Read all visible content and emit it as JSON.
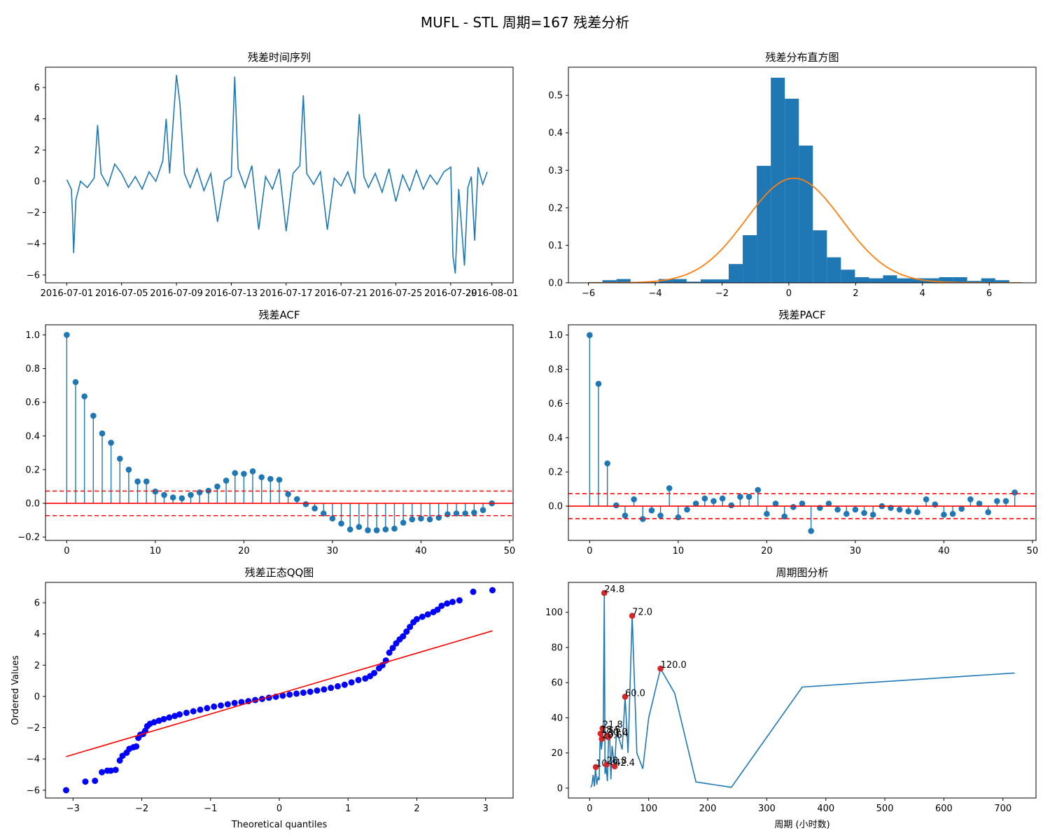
{
  "figure": {
    "title": "MUFL - STL 周期=167 残差分析"
  },
  "colors": {
    "series": "#1f77b4",
    "secondary": "#ff7f0e",
    "reference": "#ff0000",
    "peak": "#d62728",
    "qq_points": "#0000ff"
  },
  "chart_data": [
    {
      "id": "residual_series",
      "type": "line",
      "title": "残差时间序列",
      "xlabel": "",
      "ylabel": "",
      "x_tick_labels": [
        "2016-07-01",
        "2016-07-05",
        "2016-07-09",
        "2016-07-13",
        "2016-07-17",
        "2016-07-21",
        "2016-07-25",
        "2016-07-29",
        "2016-08-01"
      ],
      "x_range": [
        "2016-07-01",
        "2016-08-01"
      ],
      "ylim": [
        -6.5,
        7.3
      ],
      "y_ticks": [
        -6,
        -4,
        -2,
        0,
        2,
        4,
        6
      ],
      "points": [
        [
          "2016-07-01T00:00",
          0.1
        ],
        [
          "2016-07-01T08:00",
          -0.5
        ],
        [
          "2016-07-01T10:00",
          -2.0
        ],
        [
          "2016-07-01T12:00",
          -4.6
        ],
        [
          "2016-07-01T16:00",
          -1.2
        ],
        [
          "2016-07-02T00:00",
          0.0
        ],
        [
          "2016-07-02T12:00",
          -0.4
        ],
        [
          "2016-07-03T00:00",
          0.2
        ],
        [
          "2016-07-03T06:00",
          3.6
        ],
        [
          "2016-07-03T12:00",
          0.5
        ],
        [
          "2016-07-04T00:00",
          -0.3
        ],
        [
          "2016-07-04T12:00",
          1.1
        ],
        [
          "2016-07-05T00:00",
          0.5
        ],
        [
          "2016-07-05T12:00",
          -0.4
        ],
        [
          "2016-07-06T00:00",
          0.3
        ],
        [
          "2016-07-06T12:00",
          -0.5
        ],
        [
          "2016-07-07T00:00",
          0.6
        ],
        [
          "2016-07-07T12:00",
          0.0
        ],
        [
          "2016-07-08T00:00",
          1.3
        ],
        [
          "2016-07-08T06:00",
          4.0
        ],
        [
          "2016-07-08T12:00",
          0.5
        ],
        [
          "2016-07-08T20:00",
          4.7
        ],
        [
          "2016-07-09T00:00",
          6.8
        ],
        [
          "2016-07-09T06:00",
          5.0
        ],
        [
          "2016-07-09T14:00",
          0.5
        ],
        [
          "2016-07-10T00:00",
          -0.4
        ],
        [
          "2016-07-10T12:00",
          0.8
        ],
        [
          "2016-07-11T00:00",
          -0.6
        ],
        [
          "2016-07-11T12:00",
          0.5
        ],
        [
          "2016-07-12T00:00",
          -2.6
        ],
        [
          "2016-07-12T12:00",
          0.0
        ],
        [
          "2016-07-13T00:00",
          0.3
        ],
        [
          "2016-07-13T06:00",
          6.7
        ],
        [
          "2016-07-13T12:00",
          0.8
        ],
        [
          "2016-07-14T00:00",
          -0.4
        ],
        [
          "2016-07-14T12:00",
          1.0
        ],
        [
          "2016-07-15T00:00",
          -3.1
        ],
        [
          "2016-07-15T12:00",
          0.3
        ],
        [
          "2016-07-16T00:00",
          -0.5
        ],
        [
          "2016-07-16T12:00",
          0.8
        ],
        [
          "2016-07-17T00:00",
          -3.2
        ],
        [
          "2016-07-17T12:00",
          0.5
        ],
        [
          "2016-07-18T00:00",
          1.0
        ],
        [
          "2016-07-18T06:00",
          5.5
        ],
        [
          "2016-07-18T12:00",
          0.5
        ],
        [
          "2016-07-19T00:00",
          -0.2
        ],
        [
          "2016-07-19T12:00",
          0.6
        ],
        [
          "2016-07-20T00:00",
          -3.1
        ],
        [
          "2016-07-20T12:00",
          0.2
        ],
        [
          "2016-07-21T00:00",
          -0.3
        ],
        [
          "2016-07-21T12:00",
          0.6
        ],
        [
          "2016-07-22T00:00",
          -0.8
        ],
        [
          "2016-07-22T08:00",
          4.3
        ],
        [
          "2016-07-22T16:00",
          0.3
        ],
        [
          "2016-07-23T00:00",
          -0.4
        ],
        [
          "2016-07-23T12:00",
          0.5
        ],
        [
          "2016-07-24T00:00",
          -0.7
        ],
        [
          "2016-07-24T12:00",
          0.8
        ],
        [
          "2016-07-25T00:00",
          -1.3
        ],
        [
          "2016-07-25T12:00",
          0.4
        ],
        [
          "2016-07-26T00:00",
          -0.6
        ],
        [
          "2016-07-26T12:00",
          0.7
        ],
        [
          "2016-07-27T00:00",
          -0.5
        ],
        [
          "2016-07-27T12:00",
          0.4
        ],
        [
          "2016-07-28T00:00",
          -0.2
        ],
        [
          "2016-07-28T12:00",
          0.6
        ],
        [
          "2016-07-29T00:00",
          0.9
        ],
        [
          "2016-07-29T04:00",
          -4.8
        ],
        [
          "2016-07-29T08:00",
          -5.9
        ],
        [
          "2016-07-29T14:00",
          -0.5
        ],
        [
          "2016-07-30T00:00",
          -5.4
        ],
        [
          "2016-07-30T06:00",
          -0.4
        ],
        [
          "2016-07-30T12:00",
          0.3
        ],
        [
          "2016-07-30T18:00",
          -3.8
        ],
        [
          "2016-07-31T00:00",
          0.9
        ],
        [
          "2016-07-31T08:00",
          -0.2
        ],
        [
          "2016-07-31T16:00",
          0.6
        ]
      ]
    },
    {
      "id": "residual_histogram",
      "type": "bar",
      "title": "残差分布直方图",
      "xlabel": "",
      "ylabel": "",
      "xlim": [
        -6.6,
        7.4
      ],
      "ylim": [
        0,
        0.575
      ],
      "x_ticks": [
        -6,
        -4,
        -2,
        0,
        2,
        4,
        6
      ],
      "y_ticks": [
        0.0,
        0.1,
        0.2,
        0.3,
        0.4,
        0.5
      ],
      "bin_edges": [
        -6.0,
        -5.58,
        -5.16,
        -4.74,
        -4.32,
        -3.9,
        -3.48,
        -3.06,
        -2.64,
        -2.22,
        -1.8,
        -1.38,
        -0.96,
        -0.54,
        -0.12,
        0.3,
        0.72,
        1.14,
        1.56,
        1.98,
        2.4,
        2.82,
        3.24,
        3.66,
        4.08,
        4.5,
        4.92,
        5.34,
        5.76,
        6.18,
        6.6,
        7.0
      ],
      "density": [
        0.002,
        0.007,
        0.01,
        0.0,
        0.002,
        0.01,
        0.01,
        0.003,
        0.009,
        0.009,
        0.05,
        0.127,
        0.312,
        0.547,
        0.491,
        0.366,
        0.14,
        0.068,
        0.035,
        0.015,
        0.012,
        0.02,
        0.012,
        0.012,
        0.012,
        0.015,
        0.015,
        0.005,
        0.012,
        0.007,
        0.0
      ],
      "normal_fit": {
        "mean": 0.15,
        "std": 1.43
      }
    },
    {
      "id": "residual_acf",
      "type": "stem",
      "title": "残差ACF",
      "xlabel": "",
      "ylabel": "",
      "xlim": [
        -2.4,
        50.4
      ],
      "ylim": [
        -0.22,
        1.06
      ],
      "x_ticks": [
        0,
        10,
        20,
        30,
        40,
        50
      ],
      "y_ticks": [
        -0.2,
        0.0,
        0.2,
        0.4,
        0.6,
        0.8,
        1.0
      ],
      "confidence": 0.073,
      "lags": [
        0,
        1,
        2,
        3,
        4,
        5,
        6,
        7,
        8,
        9,
        10,
        11,
        12,
        13,
        14,
        15,
        16,
        17,
        18,
        19,
        20,
        21,
        22,
        23,
        24,
        25,
        26,
        27,
        28,
        29,
        30,
        31,
        32,
        33,
        34,
        35,
        36,
        37,
        38,
        39,
        40,
        41,
        42,
        43,
        44,
        45,
        46,
        47,
        48
      ],
      "values": [
        1.0,
        0.72,
        0.635,
        0.52,
        0.415,
        0.36,
        0.265,
        0.2,
        0.13,
        0.13,
        0.07,
        0.05,
        0.035,
        0.03,
        0.05,
        0.065,
        0.075,
        0.1,
        0.135,
        0.18,
        0.175,
        0.19,
        0.155,
        0.145,
        0.14,
        0.055,
        0.025,
        -0.005,
        -0.03,
        -0.06,
        -0.09,
        -0.12,
        -0.155,
        -0.14,
        -0.16,
        -0.16,
        -0.155,
        -0.15,
        -0.115,
        -0.095,
        -0.09,
        -0.095,
        -0.085,
        -0.065,
        -0.06,
        -0.06,
        -0.055,
        -0.04,
        0.0
      ]
    },
    {
      "id": "residual_pacf",
      "type": "stem",
      "title": "残差PACF",
      "xlabel": "",
      "ylabel": "",
      "xlim": [
        -2.4,
        50.4
      ],
      "ylim": [
        -0.2,
        1.06
      ],
      "x_ticks": [
        0,
        10,
        20,
        30,
        40,
        50
      ],
      "y_ticks": [
        0.0,
        0.2,
        0.4,
        0.6,
        0.8,
        1.0
      ],
      "confidence": 0.073,
      "lags": [
        0,
        1,
        2,
        3,
        4,
        5,
        6,
        7,
        8,
        9,
        10,
        11,
        12,
        13,
        14,
        15,
        16,
        17,
        18,
        19,
        20,
        21,
        22,
        23,
        24,
        25,
        26,
        27,
        28,
        29,
        30,
        31,
        32,
        33,
        34,
        35,
        36,
        37,
        38,
        39,
        40,
        41,
        42,
        43,
        44,
        45,
        46,
        47,
        48
      ],
      "values": [
        1.0,
        0.715,
        0.25,
        0.005,
        -0.055,
        0.04,
        -0.075,
        -0.025,
        -0.055,
        0.105,
        -0.065,
        -0.02,
        0.015,
        0.045,
        0.03,
        0.045,
        0.005,
        0.055,
        0.055,
        0.095,
        -0.045,
        0.015,
        -0.06,
        -0.005,
        0.015,
        -0.145,
        -0.01,
        0.015,
        -0.02,
        -0.045,
        -0.02,
        -0.04,
        -0.05,
        0.0,
        -0.01,
        -0.02,
        -0.03,
        -0.035,
        0.04,
        0.01,
        -0.05,
        -0.045,
        -0.015,
        0.04,
        0.015,
        -0.035,
        0.03,
        0.03,
        0.08
      ]
    },
    {
      "id": "residual_qq",
      "type": "scatter",
      "title": "残差正态QQ图",
      "xlabel": "Theoretical quantiles",
      "ylabel": "Ordered Values",
      "xlim": [
        -3.4,
        3.4
      ],
      "ylim": [
        -6.5,
        7.3
      ],
      "x_ticks": [
        -3,
        -2,
        -1,
        0,
        1,
        2,
        3
      ],
      "y_ticks": [
        -6,
        -4,
        -2,
        0,
        2,
        4,
        6
      ],
      "fit_line": {
        "x": [
          -3.1,
          3.1
        ],
        "y": [
          -3.85,
          4.2
        ]
      },
      "points": [
        [
          -3.1,
          -6.0
        ],
        [
          -2.82,
          -5.45
        ],
        [
          -2.68,
          -5.4
        ],
        [
          -2.58,
          -4.85
        ],
        [
          -2.5,
          -4.75
        ],
        [
          -2.45,
          -4.75
        ],
        [
          -2.38,
          -4.7
        ],
        [
          -2.32,
          -4.1
        ],
        [
          -2.28,
          -3.8
        ],
        [
          -2.22,
          -3.6
        ],
        [
          -2.18,
          -3.35
        ],
        [
          -2.12,
          -3.25
        ],
        [
          -2.08,
          -3.2
        ],
        [
          -2.05,
          -2.65
        ],
        [
          -2.02,
          -2.45
        ],
        [
          -1.98,
          -2.4
        ],
        [
          -1.95,
          -2.2
        ],
        [
          -1.92,
          -1.9
        ],
        [
          -1.88,
          -1.75
        ],
        [
          -1.82,
          -1.65
        ],
        [
          -1.75,
          -1.55
        ],
        [
          -1.68,
          -1.45
        ],
        [
          -1.6,
          -1.35
        ],
        [
          -1.52,
          -1.25
        ],
        [
          -1.45,
          -1.15
        ],
        [
          -1.35,
          -1.05
        ],
        [
          -1.25,
          -0.95
        ],
        [
          -1.15,
          -0.85
        ],
        [
          -1.05,
          -0.75
        ],
        [
          -0.95,
          -0.65
        ],
        [
          -0.85,
          -0.58
        ],
        [
          -0.75,
          -0.5
        ],
        [
          -0.65,
          -0.42
        ],
        [
          -0.55,
          -0.36
        ],
        [
          -0.45,
          -0.3
        ],
        [
          -0.35,
          -0.23
        ],
        [
          -0.25,
          -0.16
        ],
        [
          -0.15,
          -0.08
        ],
        [
          -0.05,
          -0.02
        ],
        [
          0.05,
          0.05
        ],
        [
          0.15,
          0.12
        ],
        [
          0.25,
          0.18
        ],
        [
          0.35,
          0.24
        ],
        [
          0.45,
          0.3
        ],
        [
          0.55,
          0.38
        ],
        [
          0.65,
          0.45
        ],
        [
          0.75,
          0.55
        ],
        [
          0.85,
          0.65
        ],
        [
          0.95,
          0.75
        ],
        [
          1.05,
          0.9
        ],
        [
          1.15,
          1.05
        ],
        [
          1.25,
          1.15
        ],
        [
          1.32,
          1.3
        ],
        [
          1.38,
          1.5
        ],
        [
          1.45,
          1.8
        ],
        [
          1.5,
          2.0
        ],
        [
          1.55,
          2.3
        ],
        [
          1.6,
          2.8
        ],
        [
          1.65,
          3.1
        ],
        [
          1.7,
          3.4
        ],
        [
          1.75,
          3.65
        ],
        [
          1.8,
          3.85
        ],
        [
          1.85,
          4.15
        ],
        [
          1.9,
          4.45
        ],
        [
          1.95,
          4.75
        ],
        [
          2.0,
          4.95
        ],
        [
          2.08,
          5.1
        ],
        [
          2.16,
          5.25
        ],
        [
          2.24,
          5.4
        ],
        [
          2.3,
          5.55
        ],
        [
          2.36,
          5.8
        ],
        [
          2.44,
          5.95
        ],
        [
          2.52,
          6.05
        ],
        [
          2.62,
          6.15
        ],
        [
          2.82,
          6.7
        ],
        [
          3.1,
          6.8
        ]
      ]
    },
    {
      "id": "periodogram",
      "type": "line",
      "title": "周期图分析",
      "xlabel": "周期 (小时数)",
      "ylabel": "",
      "xlim": [
        -36,
        756
      ],
      "ylim": [
        -5.6,
        117
      ],
      "x_ticks": [
        0,
        100,
        200,
        300,
        400,
        500,
        600,
        700
      ],
      "y_ticks": [
        0,
        20,
        40,
        60,
        80,
        100
      ],
      "points": [
        [
          2,
          0.5
        ],
        [
          4,
          2.0
        ],
        [
          6,
          7.5
        ],
        [
          8,
          1.0
        ],
        [
          10,
          12.0
        ],
        [
          12,
          2.0
        ],
        [
          14,
          6.0
        ],
        [
          16,
          4.5
        ],
        [
          18,
          31.0
        ],
        [
          20,
          22.0
        ],
        [
          22,
          29.0
        ],
        [
          23,
          34.0
        ],
        [
          24.8,
          111.0
        ],
        [
          26,
          8.0
        ],
        [
          28,
          12.0
        ],
        [
          30,
          4.0
        ],
        [
          32,
          28.5
        ],
        [
          34,
          30.0
        ],
        [
          36,
          5.0
        ],
        [
          38,
          24.0
        ],
        [
          40,
          18.0
        ],
        [
          42.4,
          12.4
        ],
        [
          45,
          29.0
        ],
        [
          48,
          31.4
        ],
        [
          50,
          28.0
        ],
        [
          55,
          22.0
        ],
        [
          60,
          52.0
        ],
        [
          65,
          20.0
        ],
        [
          72,
          98.0
        ],
        [
          80,
          20.0
        ],
        [
          90,
          11.0
        ],
        [
          100,
          40.0
        ],
        [
          120,
          68.0
        ],
        [
          144,
          54.0
        ],
        [
          180,
          3.5
        ],
        [
          240,
          0.5
        ],
        [
          360,
          57.5
        ],
        [
          720,
          65.5
        ]
      ],
      "peaks": [
        {
          "x": 24.8,
          "y": 111.0,
          "label": "24.8"
        },
        {
          "x": 72.0,
          "y": 98.0,
          "label": "72.0"
        },
        {
          "x": 120.0,
          "y": 68.0,
          "label": "120.0"
        },
        {
          "x": 60.0,
          "y": 52.0,
          "label": "60.0"
        },
        {
          "x": 21.8,
          "y": 34.0,
          "label": "21.8"
        },
        {
          "x": 18.5,
          "y": 31.0,
          "label": "18.5"
        },
        {
          "x": 30.0,
          "y": 29.8,
          "label": "30.0"
        },
        {
          "x": 31.4,
          "y": 29.0,
          "label": "31.4"
        },
        {
          "x": 20.6,
          "y": 28.0,
          "label": "20.6"
        },
        {
          "x": 10.4,
          "y": 12.0,
          "label": "10.4"
        },
        {
          "x": 28.8,
          "y": 13.5,
          "label": "28.8"
        },
        {
          "x": 42.4,
          "y": 12.4,
          "label": "42.4"
        }
      ]
    }
  ]
}
